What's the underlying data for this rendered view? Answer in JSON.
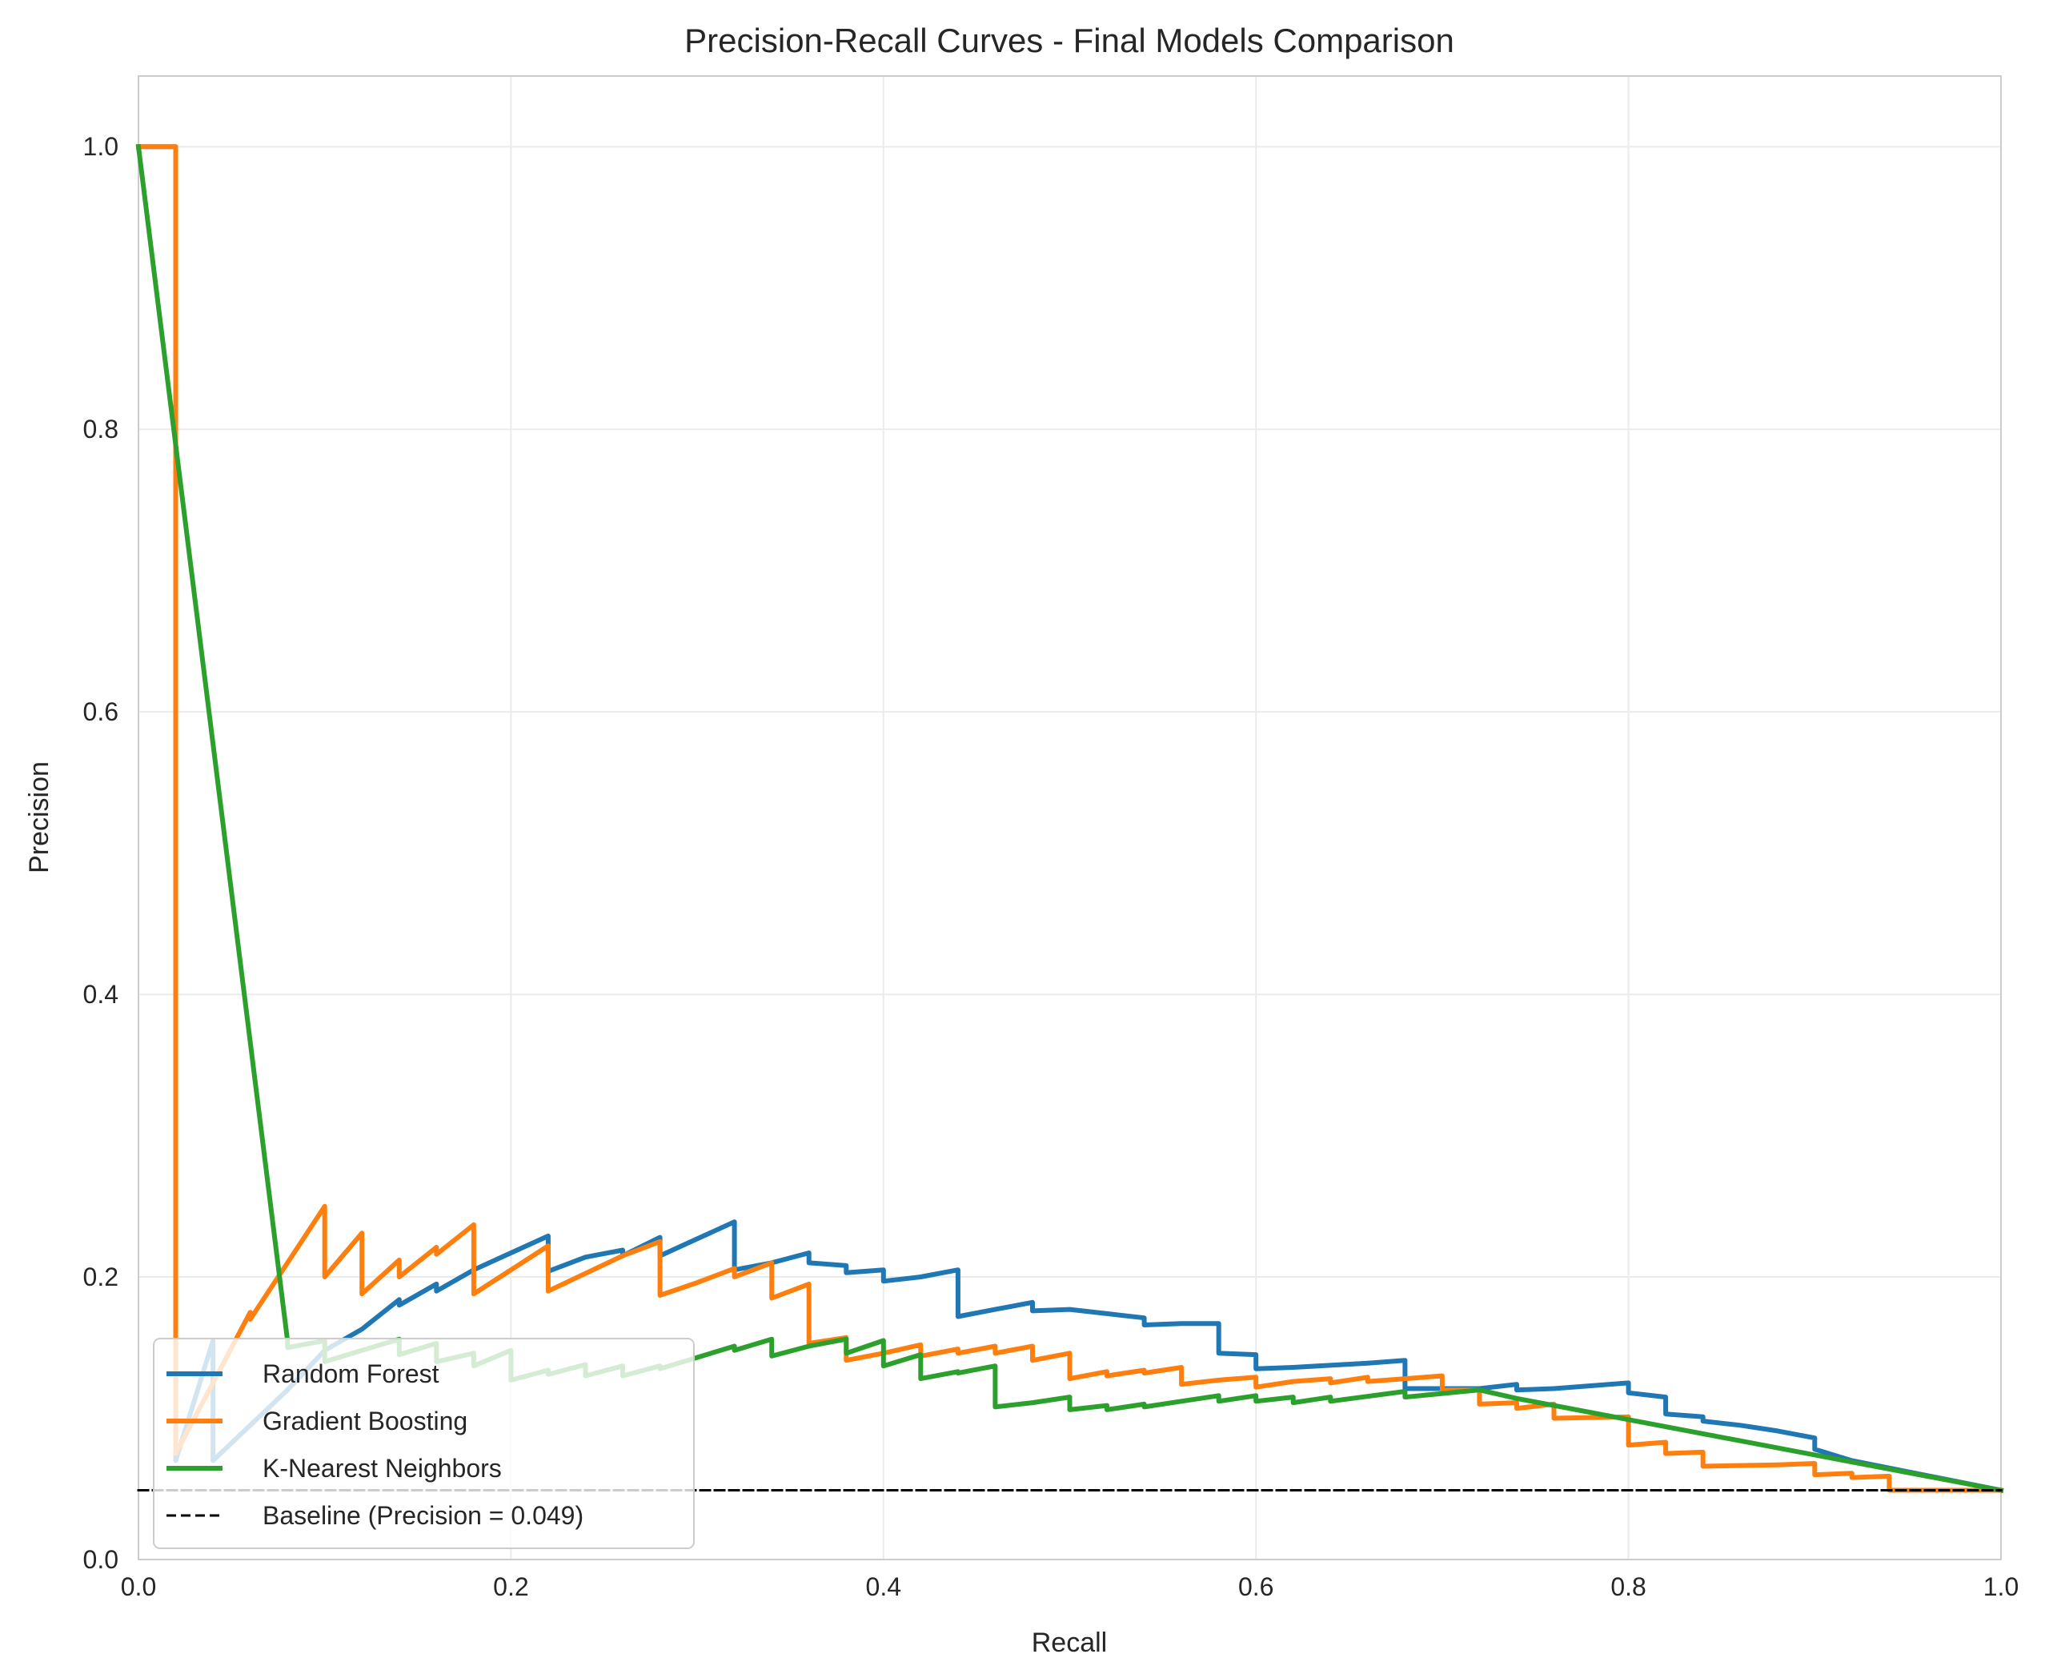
{
  "chart_data": {
    "type": "line",
    "title": "Precision-Recall Curves - Final Models Comparison",
    "xlabel": "Recall",
    "ylabel": "Precision",
    "xlim": [
      0.0,
      1.0
    ],
    "ylim": [
      0.0,
      1.05
    ],
    "xticks": [
      "0.0",
      "0.2",
      "0.4",
      "0.6",
      "0.8",
      "1.0"
    ],
    "yticks": [
      "0.0",
      "0.2",
      "0.4",
      "0.6",
      "0.8",
      "1.0"
    ],
    "grid": true,
    "legend_position": "lower-left",
    "series": [
      {
        "name": "Random Forest",
        "color": "#1f77b4",
        "line_style": "solid",
        "points": [
          [
            0.0,
            1.0
          ],
          [
            0.02,
            1.0
          ],
          [
            0.02,
            0.07
          ],
          [
            0.04,
            0.155
          ],
          [
            0.04,
            0.07
          ],
          [
            0.06,
            0.095
          ],
          [
            0.08,
            0.12
          ],
          [
            0.1,
            0.148
          ],
          [
            0.12,
            0.163
          ],
          [
            0.14,
            0.184
          ],
          [
            0.14,
            0.18
          ],
          [
            0.16,
            0.195
          ],
          [
            0.16,
            0.19
          ],
          [
            0.18,
            0.205
          ],
          [
            0.2,
            0.217
          ],
          [
            0.22,
            0.229
          ],
          [
            0.22,
            0.204
          ],
          [
            0.24,
            0.214
          ],
          [
            0.26,
            0.219
          ],
          [
            0.26,
            0.215
          ],
          [
            0.28,
            0.228
          ],
          [
            0.28,
            0.215
          ],
          [
            0.3,
            0.227
          ],
          [
            0.32,
            0.239
          ],
          [
            0.32,
            0.205
          ],
          [
            0.34,
            0.21
          ],
          [
            0.36,
            0.217
          ],
          [
            0.36,
            0.21
          ],
          [
            0.38,
            0.208
          ],
          [
            0.38,
            0.203
          ],
          [
            0.4,
            0.205
          ],
          [
            0.4,
            0.197
          ],
          [
            0.42,
            0.2
          ],
          [
            0.44,
            0.205
          ],
          [
            0.44,
            0.172
          ],
          [
            0.46,
            0.177
          ],
          [
            0.48,
            0.182
          ],
          [
            0.48,
            0.176
          ],
          [
            0.5,
            0.177
          ],
          [
            0.52,
            0.174
          ],
          [
            0.54,
            0.171
          ],
          [
            0.54,
            0.166
          ],
          [
            0.56,
            0.167
          ],
          [
            0.58,
            0.167
          ],
          [
            0.58,
            0.146
          ],
          [
            0.6,
            0.145
          ],
          [
            0.6,
            0.135
          ],
          [
            0.62,
            0.136
          ],
          [
            0.66,
            0.139
          ],
          [
            0.68,
            0.141
          ],
          [
            0.68,
            0.121
          ],
          [
            0.72,
            0.121
          ],
          [
            0.74,
            0.124
          ],
          [
            0.74,
            0.12
          ],
          [
            0.76,
            0.121
          ],
          [
            0.8,
            0.125
          ],
          [
            0.8,
            0.118
          ],
          [
            0.82,
            0.115
          ],
          [
            0.82,
            0.103
          ],
          [
            0.84,
            0.101
          ],
          [
            0.84,
            0.098
          ],
          [
            0.86,
            0.095
          ],
          [
            0.88,
            0.091
          ],
          [
            0.9,
            0.086
          ],
          [
            0.9,
            0.078
          ],
          [
            0.92,
            0.07
          ],
          [
            1.0,
            0.049
          ]
        ]
      },
      {
        "name": "Gradient Boosting",
        "color": "#ff7f0e",
        "line_style": "solid",
        "points": [
          [
            0.0,
            1.0
          ],
          [
            0.02,
            1.0
          ],
          [
            0.02,
            0.075
          ],
          [
            0.04,
            0.125
          ],
          [
            0.06,
            0.175
          ],
          [
            0.06,
            0.17
          ],
          [
            0.08,
            0.21
          ],
          [
            0.1,
            0.25
          ],
          [
            0.1,
            0.2
          ],
          [
            0.12,
            0.231
          ],
          [
            0.12,
            0.188
          ],
          [
            0.14,
            0.212
          ],
          [
            0.14,
            0.2
          ],
          [
            0.16,
            0.221
          ],
          [
            0.16,
            0.216
          ],
          [
            0.18,
            0.237
          ],
          [
            0.18,
            0.188
          ],
          [
            0.22,
            0.222
          ],
          [
            0.22,
            0.19
          ],
          [
            0.26,
            0.215
          ],
          [
            0.28,
            0.225
          ],
          [
            0.28,
            0.187
          ],
          [
            0.3,
            0.196
          ],
          [
            0.32,
            0.206
          ],
          [
            0.32,
            0.2
          ],
          [
            0.34,
            0.21
          ],
          [
            0.34,
            0.185
          ],
          [
            0.36,
            0.195
          ],
          [
            0.36,
            0.153
          ],
          [
            0.38,
            0.157
          ],
          [
            0.38,
            0.141
          ],
          [
            0.4,
            0.146
          ],
          [
            0.42,
            0.152
          ],
          [
            0.42,
            0.144
          ],
          [
            0.44,
            0.149
          ],
          [
            0.44,
            0.146
          ],
          [
            0.46,
            0.151
          ],
          [
            0.46,
            0.146
          ],
          [
            0.48,
            0.151
          ],
          [
            0.48,
            0.141
          ],
          [
            0.5,
            0.146
          ],
          [
            0.5,
            0.128
          ],
          [
            0.52,
            0.133
          ],
          [
            0.52,
            0.13
          ],
          [
            0.54,
            0.134
          ],
          [
            0.54,
            0.132
          ],
          [
            0.56,
            0.136
          ],
          [
            0.56,
            0.124
          ],
          [
            0.58,
            0.127
          ],
          [
            0.6,
            0.129
          ],
          [
            0.6,
            0.122
          ],
          [
            0.62,
            0.126
          ],
          [
            0.64,
            0.128
          ],
          [
            0.64,
            0.125
          ],
          [
            0.66,
            0.129
          ],
          [
            0.66,
            0.126
          ],
          [
            0.7,
            0.13
          ],
          [
            0.7,
            0.12
          ],
          [
            0.72,
            0.12
          ],
          [
            0.72,
            0.11
          ],
          [
            0.74,
            0.111
          ],
          [
            0.74,
            0.107
          ],
          [
            0.76,
            0.11
          ],
          [
            0.76,
            0.1
          ],
          [
            0.8,
            0.101
          ],
          [
            0.8,
            0.081
          ],
          [
            0.82,
            0.083
          ],
          [
            0.82,
            0.075
          ],
          [
            0.84,
            0.076
          ],
          [
            0.84,
            0.066
          ],
          [
            0.88,
            0.067
          ],
          [
            0.9,
            0.068
          ],
          [
            0.9,
            0.06
          ],
          [
            0.92,
            0.061
          ],
          [
            0.92,
            0.058
          ],
          [
            0.94,
            0.059
          ],
          [
            0.94,
            0.049
          ],
          [
            1.0,
            0.049
          ]
        ]
      },
      {
        "name": "K-Nearest Neighbors",
        "color": "#2ca02c",
        "line_style": "solid",
        "points": [
          [
            0.0,
            1.0
          ],
          [
            0.08,
            0.155
          ],
          [
            0.08,
            0.15
          ],
          [
            0.1,
            0.155
          ],
          [
            0.1,
            0.14
          ],
          [
            0.12,
            0.148
          ],
          [
            0.14,
            0.156
          ],
          [
            0.14,
            0.145
          ],
          [
            0.16,
            0.153
          ],
          [
            0.16,
            0.14
          ],
          [
            0.18,
            0.146
          ],
          [
            0.18,
            0.137
          ],
          [
            0.2,
            0.148
          ],
          [
            0.2,
            0.127
          ],
          [
            0.22,
            0.134
          ],
          [
            0.22,
            0.131
          ],
          [
            0.24,
            0.138
          ],
          [
            0.24,
            0.13
          ],
          [
            0.26,
            0.137
          ],
          [
            0.26,
            0.13
          ],
          [
            0.28,
            0.137
          ],
          [
            0.28,
            0.135
          ],
          [
            0.3,
            0.143
          ],
          [
            0.32,
            0.151
          ],
          [
            0.32,
            0.148
          ],
          [
            0.34,
            0.156
          ],
          [
            0.34,
            0.144
          ],
          [
            0.36,
            0.151
          ],
          [
            0.38,
            0.156
          ],
          [
            0.38,
            0.146
          ],
          [
            0.4,
            0.155
          ],
          [
            0.4,
            0.137
          ],
          [
            0.42,
            0.145
          ],
          [
            0.42,
            0.128
          ],
          [
            0.44,
            0.133
          ],
          [
            0.44,
            0.132
          ],
          [
            0.46,
            0.137
          ],
          [
            0.46,
            0.108
          ],
          [
            0.48,
            0.111
          ],
          [
            0.48,
            0.111
          ],
          [
            0.5,
            0.115
          ],
          [
            0.5,
            0.106
          ],
          [
            0.52,
            0.109
          ],
          [
            0.52,
            0.106
          ],
          [
            0.54,
            0.11
          ],
          [
            0.54,
            0.108
          ],
          [
            0.56,
            0.112
          ],
          [
            0.58,
            0.116
          ],
          [
            0.58,
            0.112
          ],
          [
            0.6,
            0.116
          ],
          [
            0.6,
            0.112
          ],
          [
            0.62,
            0.115
          ],
          [
            0.62,
            0.111
          ],
          [
            0.64,
            0.115
          ],
          [
            0.64,
            0.112
          ],
          [
            0.68,
            0.119
          ],
          [
            0.68,
            0.115
          ],
          [
            0.72,
            0.12
          ],
          [
            0.74,
            0.114
          ],
          [
            1.0,
            0.049
          ]
        ]
      },
      {
        "name": "Baseline (Precision = 0.049)",
        "color": "#000000",
        "line_style": "dashed",
        "points": [
          [
            0.0,
            0.049
          ],
          [
            1.0,
            0.049
          ]
        ]
      }
    ]
  }
}
